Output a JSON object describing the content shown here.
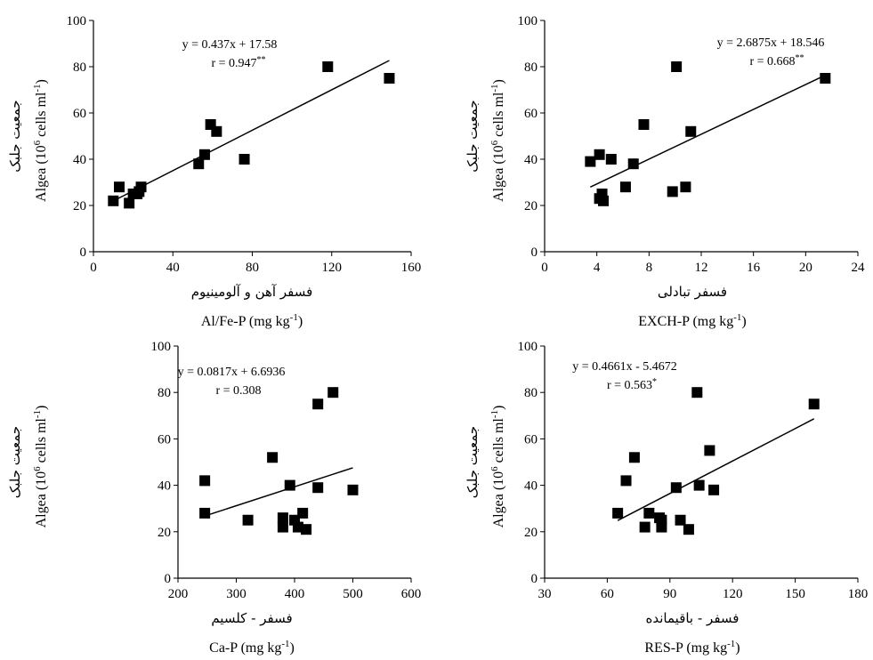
{
  "chart_data": [
    {
      "type": "scatter",
      "ylabel": "Algea (10⁶ cells ml⁻¹)",
      "ylabel_fa": "جمعیت جلبک",
      "xlabel": "Al/Fe-P (mg kg⁻¹)",
      "xlabel_fa": "فسفر آهن و آلومینیوم",
      "equation": "y = 0.437x + 17.58",
      "r_text": "r = 0.947**",
      "xlim": [
        0,
        160
      ],
      "ylim": [
        0,
        100
      ],
      "xticks": [
        0,
        40,
        80,
        120,
        160
      ],
      "yticks": [
        0,
        20,
        40,
        60,
        80,
        100
      ],
      "x": [
        10,
        13,
        18,
        20,
        22,
        23,
        24,
        53,
        56,
        59,
        62,
        76,
        118,
        149
      ],
      "y": [
        22,
        28,
        21,
        25,
        25,
        26,
        28,
        38,
        42,
        55,
        52,
        40,
        80,
        75
      ],
      "fit": {
        "slope": 0.437,
        "intercept": 17.58,
        "xrange": [
          9,
          149
        ]
      }
    },
    {
      "type": "scatter",
      "ylabel": "Algea (10⁶ cells ml⁻¹)",
      "ylabel_fa": "جمعیت جلبک",
      "xlabel": "EXCH-P (mg kg⁻¹)",
      "xlabel_fa": "فسفر تبادلی",
      "equation": "y = 2.6875x + 18.546",
      "r_text": "r = 0.668**",
      "xlim": [
        0,
        24
      ],
      "ylim": [
        0,
        100
      ],
      "xticks": [
        0,
        4,
        8,
        12,
        16,
        20,
        24
      ],
      "yticks": [
        0,
        20,
        40,
        60,
        80,
        100
      ],
      "x": [
        3.5,
        4.2,
        4.2,
        4.4,
        4.5,
        5.1,
        6.2,
        6.8,
        7.6,
        9.8,
        10.1,
        10.8,
        11.2,
        21.5
      ],
      "y": [
        39,
        42,
        23,
        25,
        22,
        40,
        28,
        38,
        55,
        26,
        80,
        28,
        52,
        75
      ],
      "fit": {
        "slope": 2.6875,
        "intercept": 18.546,
        "xrange": [
          3.5,
          21.5
        ]
      }
    },
    {
      "type": "scatter",
      "ylabel": "Algea (10⁶ cells ml⁻¹)",
      "ylabel_fa": "جمعیت جلبک",
      "xlabel": "Ca-P (mg kg⁻¹)",
      "xlabel_fa": "فسفر - کلسیم",
      "equation": "y = 0.0817x + 6.6936",
      "r_text": "r = 0.308",
      "xlim": [
        200,
        600
      ],
      "ylim": [
        0,
        100
      ],
      "xticks": [
        200,
        300,
        400,
        500,
        600
      ],
      "yticks": [
        0,
        20,
        40,
        60,
        80,
        100
      ],
      "x": [
        246,
        246,
        320,
        362,
        380,
        380,
        392,
        400,
        406,
        414,
        420,
        440,
        440,
        466,
        500
      ],
      "y": [
        42,
        28,
        25,
        52,
        26,
        22,
        40,
        25,
        22,
        28,
        21,
        75,
        39,
        80,
        38
      ],
      "fit": {
        "slope": 0.0817,
        "intercept": 6.6936,
        "xrange": [
          246,
          500
        ]
      }
    },
    {
      "type": "scatter",
      "ylabel": "Algea (10⁶ cells ml⁻¹)",
      "ylabel_fa": "جمعیت جلبک",
      "xlabel": "RES-P (mg kg⁻¹)",
      "xlabel_fa": "فسفر - باقیمانده",
      "equation": "y = 0.4661x - 5.4672",
      "r_text": "r = 0.563*",
      "xlim": [
        30,
        180
      ],
      "ylim": [
        0,
        100
      ],
      "xticks": [
        30,
        60,
        90,
        120,
        150,
        180
      ],
      "yticks": [
        0,
        20,
        40,
        60,
        80,
        100
      ],
      "x": [
        65,
        69,
        73,
        78,
        80,
        85,
        86,
        86,
        93,
        95,
        99,
        103,
        104,
        109,
        111,
        159
      ],
      "y": [
        28,
        42,
        52,
        22,
        28,
        26,
        22,
        25,
        39,
        25,
        21,
        80,
        40,
        55,
        38,
        75
      ],
      "fit": {
        "slope": 0.4661,
        "intercept": -5.4672,
        "xrange": [
          65,
          159
        ]
      }
    }
  ]
}
